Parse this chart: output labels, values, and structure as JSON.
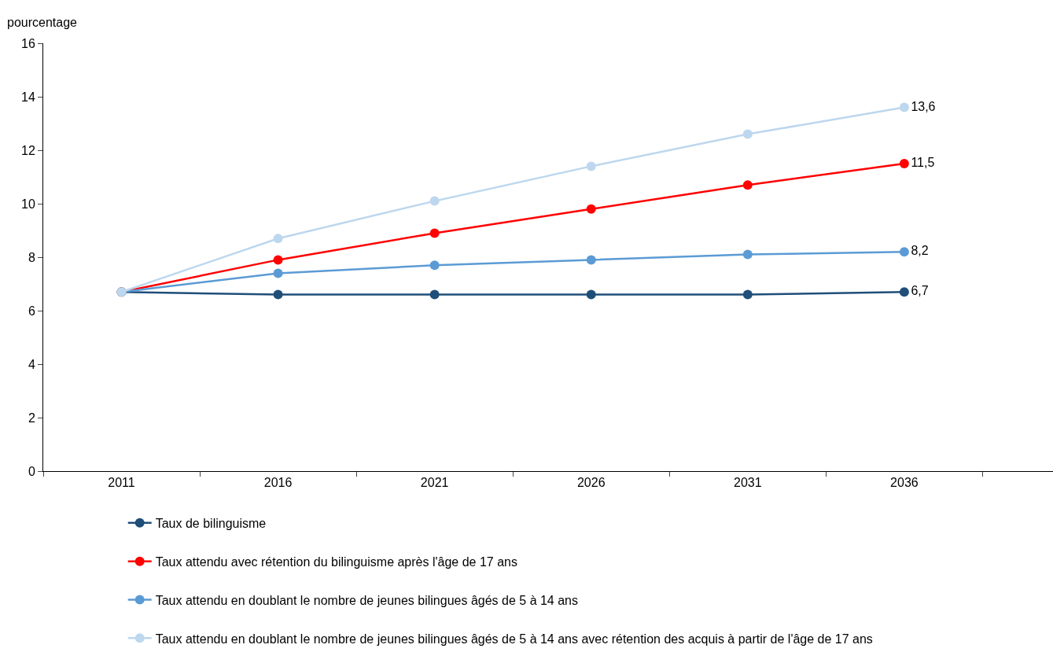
{
  "chart_data": {
    "type": "line",
    "ylabel": "pourcentage",
    "categories": [
      "2011",
      "2016",
      "2021",
      "2026",
      "2031",
      "2036"
    ],
    "series": [
      {
        "name": "Taux de bilinguisme",
        "color": "#1f4e79",
        "values": [
          6.7,
          6.6,
          6.6,
          6.6,
          6.6,
          6.7
        ],
        "value_labels": [
          null,
          null,
          null,
          null,
          null,
          "6,7"
        ]
      },
      {
        "name": "Taux attendu avec rétention du bilinguisme après l'âge de 17 ans",
        "color": "#ff0000",
        "values": [
          6.7,
          7.9,
          8.9,
          9.8,
          10.7,
          11.5
        ],
        "value_labels": [
          null,
          null,
          null,
          null,
          null,
          "11,5"
        ]
      },
      {
        "name": "Taux attendu en doublant le nombre de jeunes bilingues âgés de 5 à 14 ans",
        "color": "#5b9bd5",
        "values": [
          6.7,
          7.4,
          7.7,
          7.9,
          8.1,
          8.2
        ],
        "value_labels": [
          null,
          null,
          null,
          null,
          null,
          "8,2"
        ]
      },
      {
        "name": "Taux attendu en doublant le nombre de jeunes bilingues âgés de 5 à 14 ans avec rétention des acquis à partir de l'âge de 17 ans",
        "color": "#bdd7ee",
        "values": [
          6.7,
          8.7,
          10.1,
          11.4,
          12.6,
          13.6
        ],
        "value_labels": [
          null,
          null,
          null,
          null,
          null,
          "13,6"
        ]
      }
    ],
    "ylim": [
      0,
      16
    ],
    "yticks": [
      0,
      2,
      4,
      6,
      8,
      10,
      12,
      14,
      16
    ],
    "legend": "bottom",
    "marker": "circle",
    "line_style": "solid"
  }
}
